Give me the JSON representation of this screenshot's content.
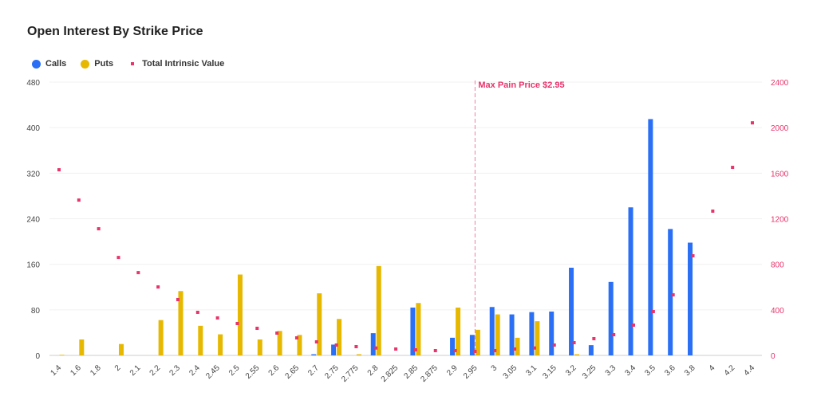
{
  "chart_data": {
    "type": "bar",
    "title": "Open Interest By Strike Price",
    "categories": [
      "1.4",
      "1.6",
      "1.8",
      "2",
      "2.1",
      "2.2",
      "2.3",
      "2.4",
      "2.45",
      "2.5",
      "2.55",
      "2.6",
      "2.65",
      "2.7",
      "2.75",
      "2.775",
      "2.8",
      "2.825",
      "2.85",
      "2.875",
      "2.9",
      "2.95",
      "3",
      "3.05",
      "3.1",
      "3.15",
      "3.2",
      "3.25",
      "3.3",
      "3.4",
      "3.5",
      "3.6",
      "3.8",
      "4",
      "4.2",
      "4.4"
    ],
    "series": [
      {
        "name": "Calls",
        "axis": "left",
        "type": "bar",
        "color": "#2a6ff5",
        "values": [
          0,
          0,
          0,
          0,
          0,
          0,
          0,
          0,
          0,
          0,
          0,
          0,
          0,
          2,
          19,
          0,
          39,
          0,
          84,
          0,
          31,
          36,
          85,
          72,
          76,
          77,
          154,
          18,
          129,
          260,
          415,
          222,
          198,
          0,
          0,
          0
        ]
      },
      {
        "name": "Puts",
        "axis": "left",
        "type": "bar",
        "color": "#e6b800",
        "values": [
          1,
          28,
          0,
          20,
          0,
          62,
          113,
          52,
          37,
          142,
          28,
          43,
          36,
          109,
          64,
          2,
          157,
          0,
          92,
          0,
          84,
          45,
          72,
          31,
          60,
          0,
          2,
          0,
          0,
          0,
          0,
          0,
          0,
          0,
          0,
          0
        ]
      },
      {
        "name": "Total Intrinsic Value",
        "axis": "right",
        "type": "scatter",
        "color": "#e8336b",
        "values": [
          1630,
          1364,
          1112,
          860,
          727,
          601,
          490,
          378,
          329,
          280,
          238,
          196,
          154,
          119,
          91,
          77,
          65,
          56,
          49,
          42,
          42,
          35,
          42,
          56,
          65,
          91,
          112,
          147,
          182,
          266,
          385,
          532,
          875,
          1267,
          1651,
          2042
        ]
      }
    ],
    "y_left": {
      "range": [
        0,
        480
      ],
      "ticks": [
        "0",
        "80",
        "160",
        "240",
        "320",
        "400",
        "480"
      ]
    },
    "y_right": {
      "range": [
        0,
        2400
      ],
      "ticks": [
        "0",
        "400",
        "800",
        "1200",
        "1600",
        "2000",
        "2400"
      ],
      "color": "#e8336b"
    },
    "grid": true,
    "legend": "top-left",
    "annotation": {
      "label": "Max Pain Price $2.95",
      "category": "2.95",
      "color": "#f07fa0"
    }
  }
}
